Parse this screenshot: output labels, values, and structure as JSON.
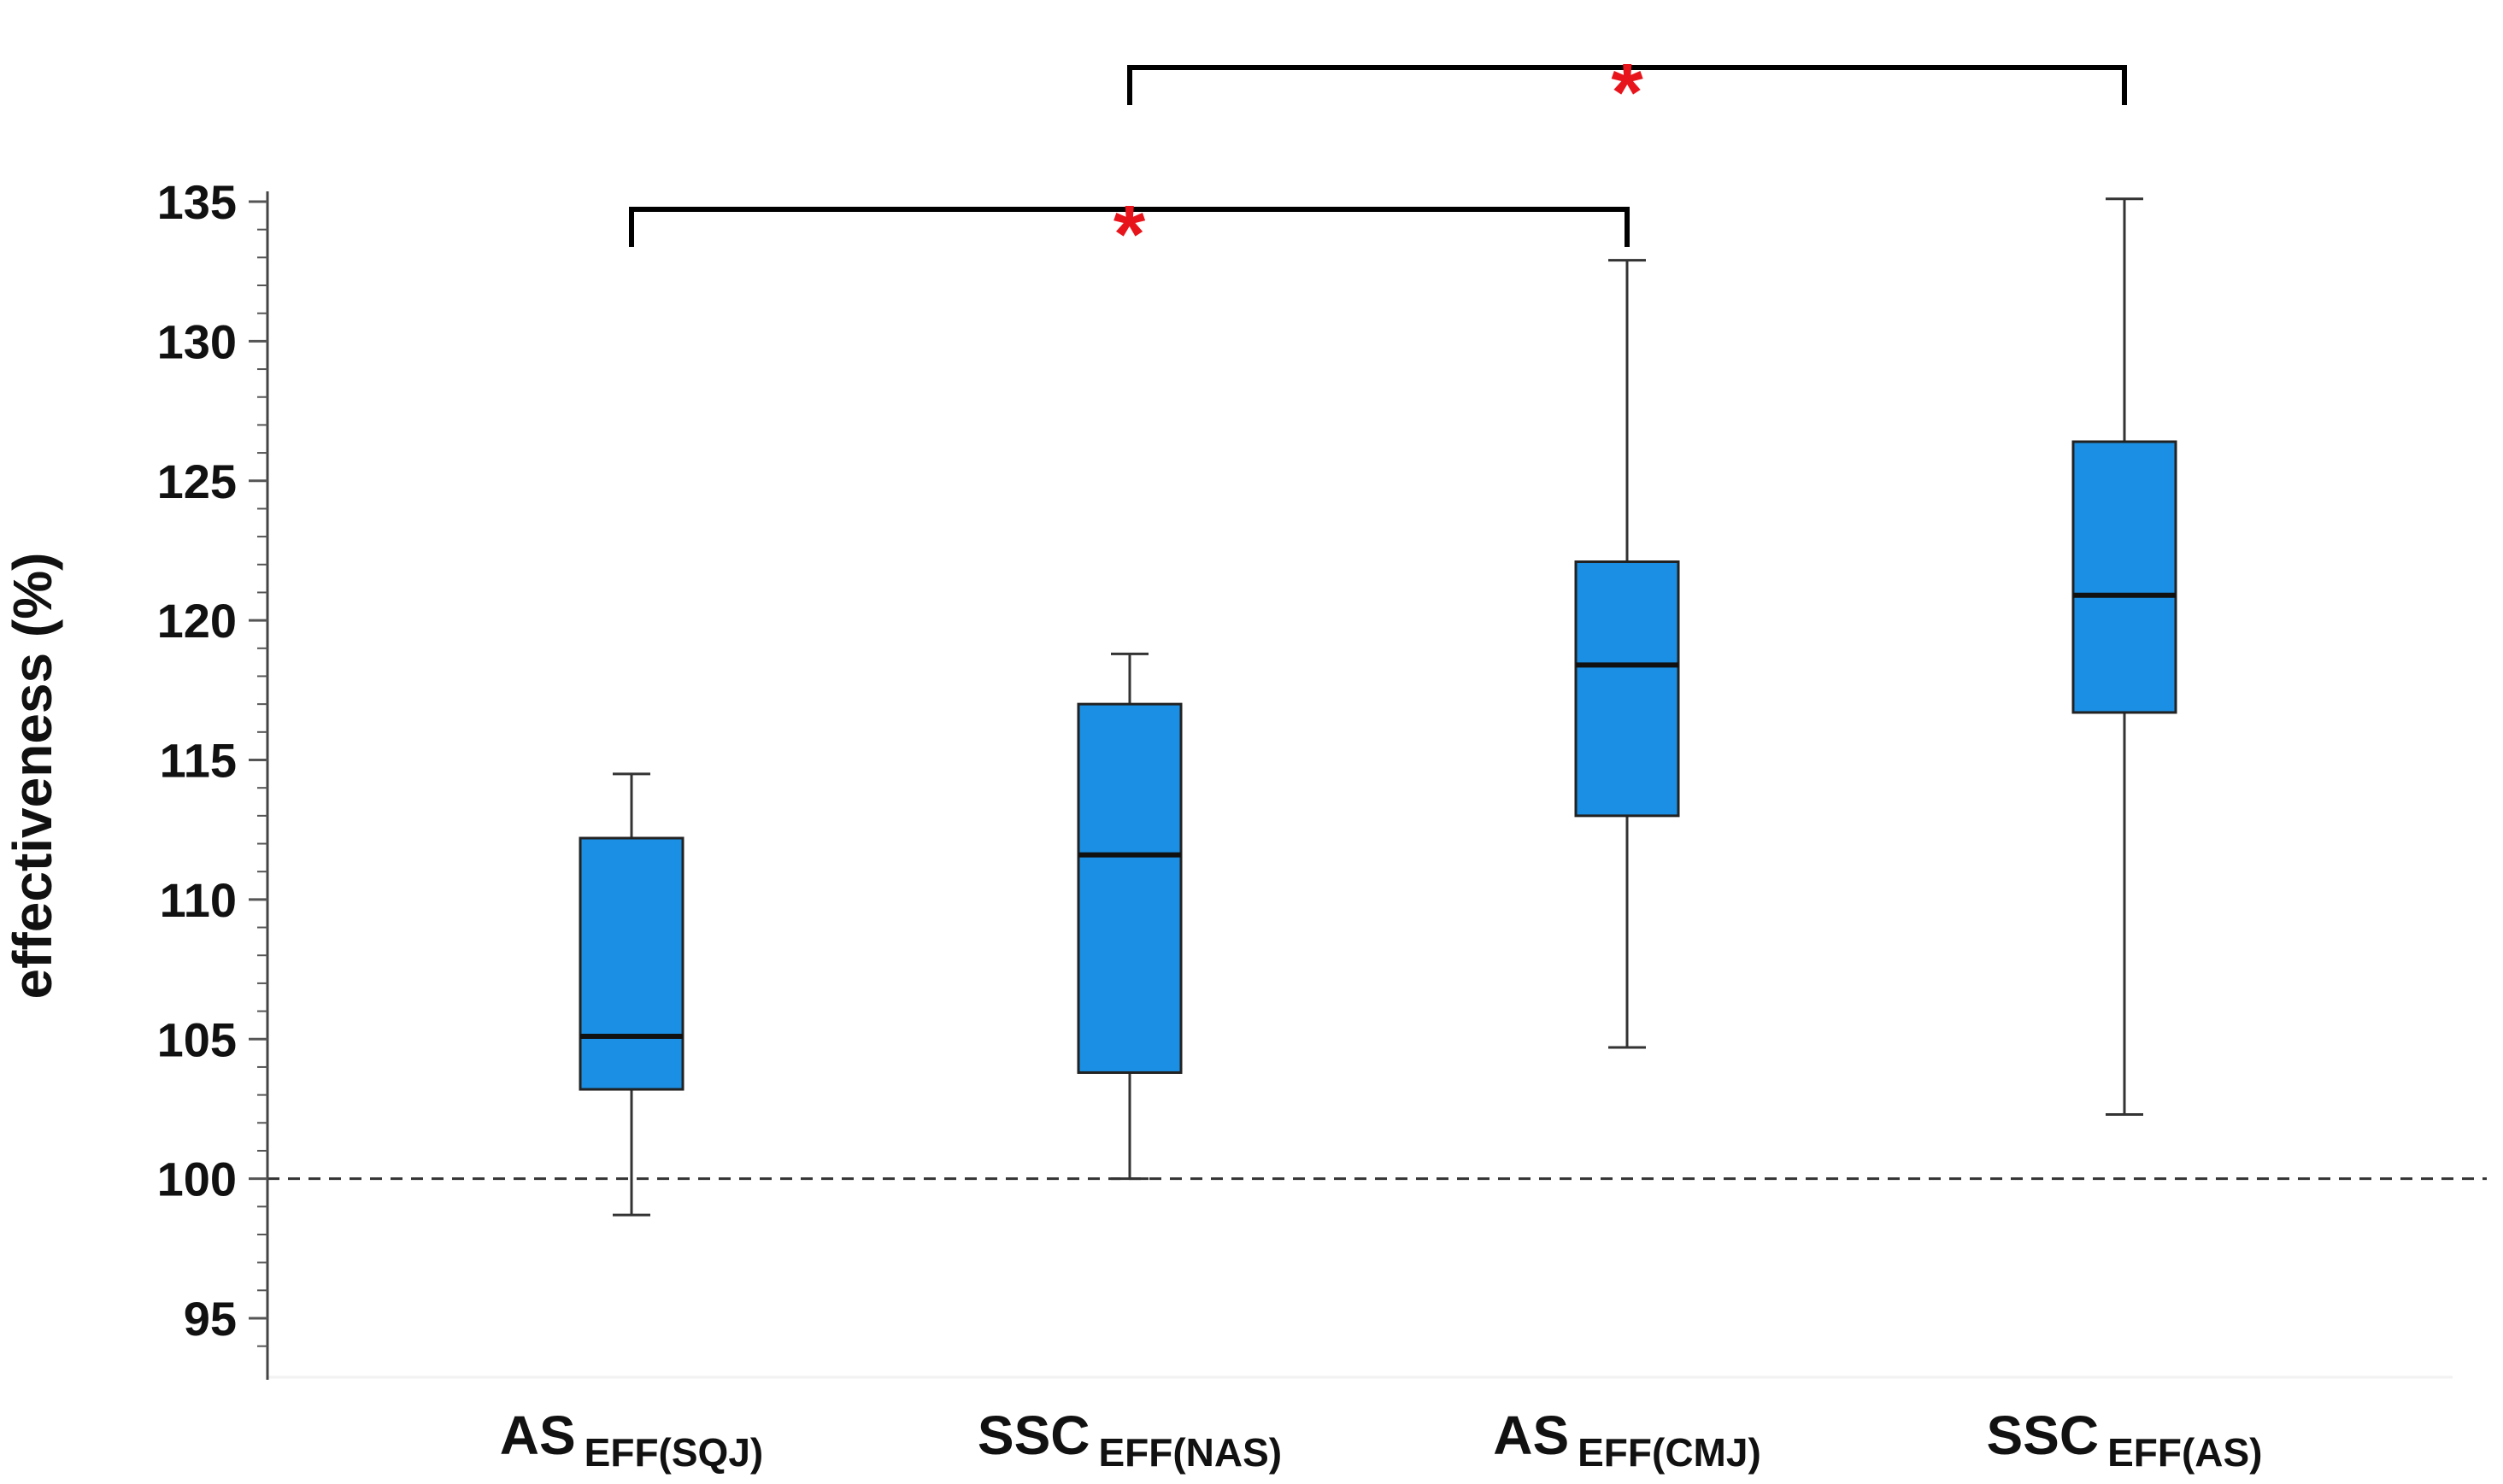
{
  "chart_data": {
    "type": "boxplot",
    "ylabel": "effectiveness (%)",
    "ylim": [
      93,
      136
    ],
    "yticks": [
      95,
      100,
      105,
      110,
      115,
      120,
      125,
      130,
      135
    ],
    "yticks_labels": [
      "95",
      "100",
      "105",
      "110",
      "115",
      "120",
      "125",
      "130",
      "135"
    ],
    "reference_line": 100,
    "box_color": "#1a8fe3",
    "significance_color": "#e8141c",
    "categories": [
      {
        "main": "AS",
        "sub": "EFF(SQJ)",
        "whisker_low": 98.7,
        "q1": 103.2,
        "median": 105.1,
        "q3": 112.2,
        "whisker_high": 114.5
      },
      {
        "main": "SSC",
        "sub": "EFF(NAS)",
        "whisker_low": 100.0,
        "q1": 103.8,
        "median": 111.6,
        "q3": 117.0,
        "whisker_high": 118.8
      },
      {
        "main": "AS",
        "sub": "EFF(CMJ)",
        "whisker_low": 104.7,
        "q1": 113.0,
        "median": 118.4,
        "q3": 122.1,
        "whisker_high": 132.9
      },
      {
        "main": "SSC",
        "sub": "EFF(AS)",
        "whisker_low": 102.3,
        "q1": 116.7,
        "median": 120.9,
        "q3": 126.4,
        "whisker_high": 135.1
      }
    ],
    "significance": [
      {
        "from": 0,
        "to": 2,
        "label": "*"
      },
      {
        "from": 1,
        "to": 3,
        "label": "*"
      }
    ]
  }
}
